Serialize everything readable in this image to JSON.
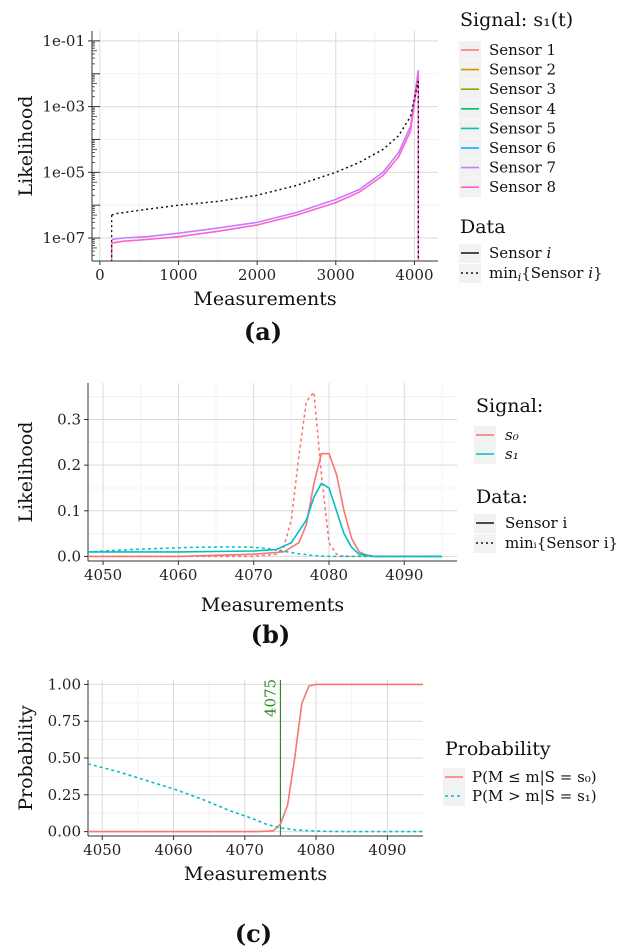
{
  "chart_data": [
    {
      "panel_label": "(a)",
      "type": "line",
      "xlabel": "Measurements",
      "ylabel": "Likelihood",
      "xlim": [
        -100,
        4300
      ],
      "ylim": [
        2e-08,
        0.2
      ],
      "yscale": "log",
      "x_ticks": [
        0,
        1000,
        2000,
        3000,
        4000
      ],
      "y_ticks": [
        1e-07,
        1e-05,
        0.001,
        0.1
      ],
      "y_tick_labels": [
        "1e-07",
        "1e-05",
        "1e-03",
        "1e-01"
      ],
      "grid": true,
      "legend_placement": "right",
      "legend_signal_title": "Signal: s₁(t)",
      "legend_data_title": "Data",
      "series": [
        {
          "name": "Sensor 1",
          "color": "#F8766D"
        },
        {
          "name": "Sensor 2",
          "color": "#CD9600"
        },
        {
          "name": "Sensor 3",
          "color": "#7CAE00"
        },
        {
          "name": "Sensor 4",
          "color": "#00BE67"
        },
        {
          "name": "Sensor 5",
          "color": "#00BFC4"
        },
        {
          "name": "Sensor 6",
          "color": "#00A9FF"
        },
        {
          "name": "Sensor 7",
          "color": "#C77CFF"
        },
        {
          "name": "Sensor 8",
          "color": "#FF61CC"
        }
      ],
      "curves": {
        "sensor_upper": {
          "x": [
            150,
            300,
            600,
            1000,
            1500,
            2000,
            2500,
            3000,
            3300,
            3600,
            3800,
            3950,
            4050
          ],
          "y": [
            9e-08,
            1e-07,
            1.1e-07,
            1.4e-07,
            2e-07,
            3e-07,
            6e-07,
            1.5e-06,
            3e-06,
            1e-05,
            4e-05,
            0.00025,
            0.013
          ]
        },
        "sensor_lower": {
          "x": [
            150,
            300,
            600,
            1000,
            1500,
            2000,
            2500,
            3000,
            3300,
            3600,
            3800,
            3950,
            4050
          ],
          "y": [
            7e-08,
            8e-08,
            9e-08,
            1.1e-07,
            1.6e-07,
            2.5e-07,
            5e-07,
            1.2e-06,
            2.5e-06,
            8e-06,
            3e-05,
            0.00018,
            0.009
          ]
        },
        "minimum": {
          "x": [
            150,
            200,
            500,
            1000,
            1500,
            2000,
            2500,
            3000,
            3300,
            3600,
            3800,
            3950,
            4050
          ],
          "y": [
            5e-07,
            5.5e-07,
            7e-07,
            1e-06,
            1.3e-06,
            2e-06,
            4e-06,
            1e-05,
            2e-05,
            5e-05,
            0.00013,
            0.0005,
            0.006
          ]
        }
      }
    },
    {
      "panel_label": "(b)",
      "type": "line",
      "xlabel": "Measurements",
      "ylabel": "Likelihood",
      "xlim": [
        4048,
        4097
      ],
      "ylim": [
        -0.01,
        0.38
      ],
      "x_ticks": [
        4050,
        4060,
        4070,
        4080,
        4090
      ],
      "y_ticks": [
        0.0,
        0.1,
        0.2,
        0.3
      ],
      "y_tick_labels": [
        "0.0",
        "0.1",
        "0.2",
        "0.3"
      ],
      "grid": true,
      "legend_placement": "right",
      "legend_signal_title": "Signal:",
      "legend_data_title": "Data:",
      "series": [
        {
          "name": "s₀",
          "color": "#F8766D",
          "sensor": {
            "x": [
              4048,
              4060,
              4070,
              4074,
              4076,
              4077,
              4078,
              4079,
              4080,
              4081,
              4082,
              4083,
              4084,
              4085,
              4086,
              4095
            ],
            "y": [
              0.0,
              0.0,
              0.005,
              0.01,
              0.03,
              0.07,
              0.16,
              0.225,
              0.225,
              0.18,
              0.1,
              0.04,
              0.01,
              0.003,
              0.0,
              0.0
            ]
          },
          "minimum": {
            "x": [
              4048,
              4070,
              4073,
              4074,
              4075,
              4076,
              4077,
              4078,
              4079,
              4080,
              4081,
              4082,
              4095
            ],
            "y": [
              0.0,
              0.0,
              0.005,
              0.02,
              0.08,
              0.22,
              0.34,
              0.36,
              0.18,
              0.03,
              0.005,
              0.0,
              0.0
            ]
          }
        },
        {
          "name": "s₁",
          "color": "#00BFC4",
          "sensor": {
            "x": [
              4048,
              4060,
              4070,
              4073,
              4075,
              4077,
              4078,
              4079,
              4080,
              4081,
              4082,
              4083,
              4084,
              4086,
              4095
            ],
            "y": [
              0.01,
              0.01,
              0.012,
              0.015,
              0.03,
              0.08,
              0.13,
              0.16,
              0.15,
              0.1,
              0.05,
              0.02,
              0.005,
              0.0,
              0.0
            ]
          },
          "minimum": {
            "x": [
              4048,
              4055,
              4062,
              4067,
              4070,
              4072,
              4074,
              4076,
              4078,
              4080,
              4082,
              4095
            ],
            "y": [
              0.01,
              0.016,
              0.02,
              0.021,
              0.02,
              0.017,
              0.011,
              0.006,
              0.002,
              0.0,
              0.0,
              0.0
            ]
          }
        }
      ],
      "data_legend": [
        "Sensor i",
        "minᵢ{Sensor i}"
      ]
    },
    {
      "panel_label": "(c)",
      "type": "line",
      "xlabel": "Measurements",
      "ylabel": "Probability",
      "xlim": [
        4048,
        4095
      ],
      "ylim": [
        -0.03,
        1.03
      ],
      "x_ticks": [
        4050,
        4060,
        4070,
        4080,
        4090
      ],
      "y_ticks": [
        0.0,
        0.25,
        0.5,
        0.75,
        1.0
      ],
      "y_tick_labels": [
        "0.00",
        "0.25",
        "0.50",
        "0.75",
        "1.00"
      ],
      "grid": true,
      "vline": {
        "x": 4075,
        "label": "4075",
        "color": "#2E8B2E"
      },
      "legend_placement": "right",
      "legend_title": "Probability",
      "series": [
        {
          "name": "P(M ≤ m|S = s₀)",
          "color": "#F8766D",
          "dash": "solid",
          "x": [
            4048,
            4072,
            4074,
            4075,
            4076,
            4077,
            4078,
            4079,
            4080,
            4095
          ],
          "y": [
            0.0,
            0.0,
            0.005,
            0.05,
            0.18,
            0.5,
            0.87,
            0.99,
            1.0,
            1.0
          ]
        },
        {
          "name": "P(M > m|S = s₁)",
          "color": "#00BFC4",
          "dash": "dashed",
          "x": [
            4048,
            4052,
            4056,
            4060,
            4064,
            4068,
            4071,
            4073,
            4075,
            4077,
            4079,
            4081,
            4085,
            4095
          ],
          "y": [
            0.46,
            0.41,
            0.35,
            0.29,
            0.22,
            0.14,
            0.09,
            0.05,
            0.025,
            0.012,
            0.006,
            0.002,
            0.0,
            0.0
          ]
        }
      ]
    }
  ]
}
